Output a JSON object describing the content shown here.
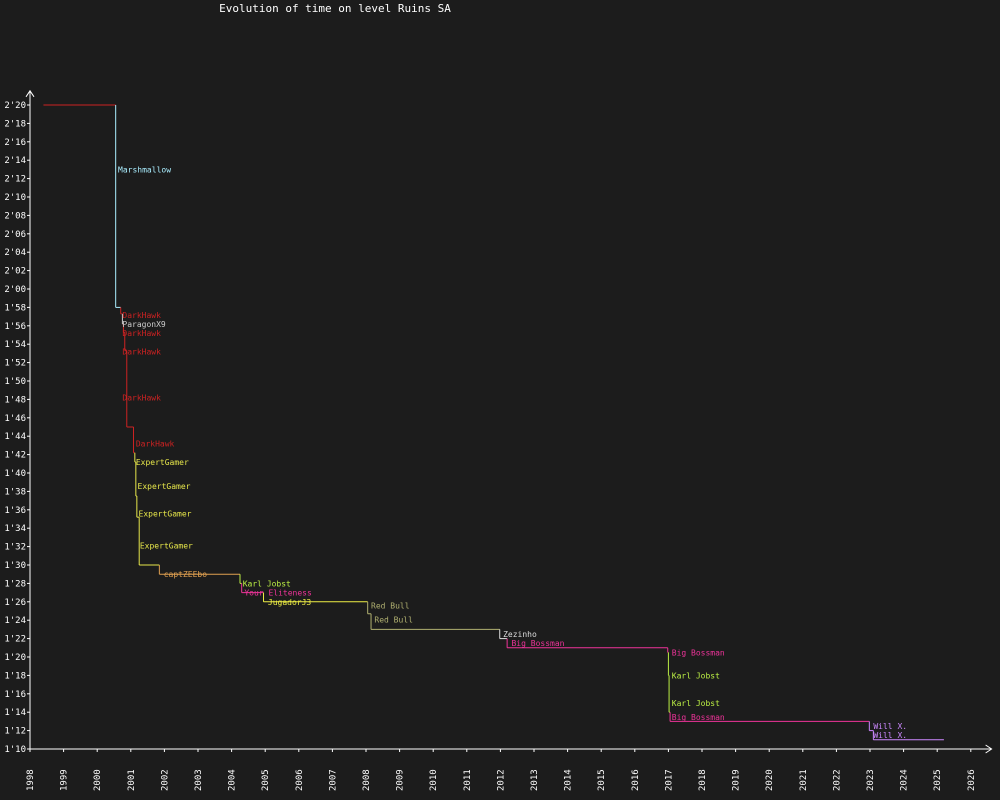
{
  "chart_data": {
    "type": "line",
    "title": "Evolution of time on level Ruins SA",
    "xlabel": "",
    "ylabel": "",
    "x_range": [
      1998,
      2026.5
    ],
    "y_range": [
      70,
      141
    ],
    "x_ticks": [
      "1998",
      "1999",
      "2000",
      "2001",
      "2002",
      "2003",
      "2004",
      "2005",
      "2006",
      "2007",
      "2008",
      "2009",
      "2010",
      "2011",
      "2012",
      "2013",
      "2014",
      "2015",
      "2016",
      "2017",
      "2018",
      "2019",
      "2020",
      "2021",
      "2022",
      "2023",
      "2024",
      "2025",
      "2026"
    ],
    "y_ticks": [
      {
        "value": 70,
        "label": "1'10"
      },
      {
        "value": 72,
        "label": "1'12"
      },
      {
        "value": 74,
        "label": "1'14"
      },
      {
        "value": 76,
        "label": "1'16"
      },
      {
        "value": 78,
        "label": "1'18"
      },
      {
        "value": 80,
        "label": "1'20"
      },
      {
        "value": 82,
        "label": "1'22"
      },
      {
        "value": 84,
        "label": "1'24"
      },
      {
        "value": 86,
        "label": "1'26"
      },
      {
        "value": 88,
        "label": "1'28"
      },
      {
        "value": 90,
        "label": "1'30"
      },
      {
        "value": 92,
        "label": "1'32"
      },
      {
        "value": 94,
        "label": "1'34"
      },
      {
        "value": 96,
        "label": "1'36"
      },
      {
        "value": 98,
        "label": "1'38"
      },
      {
        "value": 100,
        "label": "1'40"
      },
      {
        "value": 102,
        "label": "1'42"
      },
      {
        "value": 104,
        "label": "1'44"
      },
      {
        "value": 106,
        "label": "1'46"
      },
      {
        "value": 108,
        "label": "1'48"
      },
      {
        "value": 110,
        "label": "1'50"
      },
      {
        "value": 112,
        "label": "1'52"
      },
      {
        "value": 114,
        "label": "1'54"
      },
      {
        "value": 116,
        "label": "1'56"
      },
      {
        "value": 118,
        "label": "1'58"
      },
      {
        "value": 120,
        "label": "2'00"
      },
      {
        "value": 122,
        "label": "2'02"
      },
      {
        "value": 124,
        "label": "2'04"
      },
      {
        "value": 126,
        "label": "2'06"
      },
      {
        "value": 128,
        "label": "2'08"
      },
      {
        "value": 130,
        "label": "2'10"
      },
      {
        "value": 132,
        "label": "2'12"
      },
      {
        "value": 134,
        "label": "2'14"
      },
      {
        "value": 136,
        "label": "2'16"
      },
      {
        "value": 138,
        "label": "2'18"
      },
      {
        "value": 140,
        "label": "2'20"
      }
    ],
    "grid": false,
    "records": [
      {
        "holder": "",
        "start": 1998.4,
        "end": 2000.55,
        "time": 140,
        "color": "#cc2222"
      },
      {
        "holder": "Marshmallow",
        "start": 2000.55,
        "end": 2000.7,
        "time": 118,
        "color": "#aaeeff"
      },
      {
        "holder": "DarkHawk",
        "start": 2000.7,
        "end": 2000.75,
        "time": 117.3,
        "color": "#cc2222"
      },
      {
        "holder": "ParagonX9",
        "start": 2000.75,
        "end": 2000.78,
        "time": 116.2,
        "color": "#cccccc"
      },
      {
        "holder": "DarkHawk",
        "start": 2000.78,
        "end": 2000.82,
        "time": 115.3,
        "color": "#cc2222"
      },
      {
        "holder": "DarkHawk",
        "start": 2000.82,
        "end": 2000.88,
        "time": 113.3,
        "color": "#cc2222"
      },
      {
        "holder": "DarkHawk",
        "start": 2000.88,
        "end": 2001.08,
        "time": 105,
        "color": "#cc2222"
      },
      {
        "holder": "DarkHawk",
        "start": 2001.08,
        "end": 2001.12,
        "time": 102.2,
        "color": "#cc2222"
      },
      {
        "holder": "ExpertGamer",
        "start": 2001.12,
        "end": 2001.15,
        "time": 101.2,
        "color": "#e6e64a"
      },
      {
        "holder": "ExpertGamer",
        "start": 2001.15,
        "end": 2001.18,
        "time": 97.5,
        "color": "#e6e64a"
      },
      {
        "holder": "ExpertGamer",
        "start": 2001.18,
        "end": 2001.25,
        "time": 95.2,
        "color": "#e6e64a"
      },
      {
        "holder": "ExpertGamer",
        "start": 2001.25,
        "end": 2001.85,
        "time": 90,
        "color": "#e6e64a"
      },
      {
        "holder": "captZEEbo",
        "start": 2001.85,
        "end": 2004.25,
        "time": 89,
        "color": "#e0a050"
      },
      {
        "holder": "Karl Jobst",
        "start": 2004.25,
        "end": 2004.3,
        "time": 88,
        "color": "#bbee44"
      },
      {
        "holder": "Your Eliteness",
        "start": 2004.3,
        "end": 2004.95,
        "time": 87,
        "color": "#ee3399"
      },
      {
        "holder": "JugadorJ3",
        "start": 2004.95,
        "end": 2008.05,
        "time": 86,
        "color": "#eeee44"
      },
      {
        "holder": "Red Bull",
        "start": 2008.05,
        "end": 2008.15,
        "time": 84.7,
        "color": "#b0b070"
      },
      {
        "holder": "Red Bull",
        "start": 2008.15,
        "end": 2011.98,
        "time": 83,
        "color": "#b0b070"
      },
      {
        "holder": "Zezinho",
        "start": 2011.98,
        "end": 2012.2,
        "time": 82,
        "color": "#dddddd"
      },
      {
        "holder": "Big Bossman",
        "start": 2012.2,
        "end": 2016.98,
        "time": 81,
        "color": "#ee3399"
      },
      {
        "holder": "Big Bossman",
        "start": 2016.98,
        "end": 2017.0,
        "time": 80.5,
        "color": "#ee3399"
      },
      {
        "holder": "Karl Jobst",
        "start": 2017.0,
        "end": 2017.02,
        "time": 78,
        "color": "#bbee44"
      },
      {
        "holder": "Karl Jobst",
        "start": 2017.02,
        "end": 2017.05,
        "time": 74,
        "color": "#bbee44"
      },
      {
        "holder": "Big Bossman",
        "start": 2017.05,
        "end": 2022.98,
        "time": 73,
        "color": "#ee3399"
      },
      {
        "holder": "Will X.",
        "start": 2022.98,
        "end": 2023.1,
        "time": 72,
        "color": "#cc88ff"
      },
      {
        "holder": "Will X.",
        "start": 2023.1,
        "end": 2025.2,
        "time": 71,
        "color": "#cc88ff"
      }
    ],
    "labels": [
      {
        "text": "Marshmallow",
        "x": 2000.62,
        "y": 133,
        "color": "#aaeeff"
      },
      {
        "text": "DarkHawk",
        "x": 2000.75,
        "y": 117.2,
        "color": "#cc2222"
      },
      {
        "text": "ParagonX9",
        "x": 2000.75,
        "y": 116.2,
        "color": "#cccccc"
      },
      {
        "text": "DarkHawk",
        "x": 2000.75,
        "y": 115.2,
        "color": "#cc2222"
      },
      {
        "text": "DarkHawk",
        "x": 2000.75,
        "y": 113.2,
        "color": "#cc2222"
      },
      {
        "text": "DarkHawk",
        "x": 2000.75,
        "y": 108.2,
        "color": "#cc2222"
      },
      {
        "text": "DarkHawk",
        "x": 2001.15,
        "y": 103.2,
        "color": "#cc2222"
      },
      {
        "text": "ExpertGamer",
        "x": 2001.15,
        "y": 101.2,
        "color": "#e6e64a"
      },
      {
        "text": "ExpertGamer",
        "x": 2001.2,
        "y": 98.6,
        "color": "#e6e64a"
      },
      {
        "text": "ExpertGamer",
        "x": 2001.23,
        "y": 95.6,
        "color": "#e6e64a"
      },
      {
        "text": "ExpertGamer",
        "x": 2001.27,
        "y": 92.1,
        "color": "#e6e64a"
      },
      {
        "text": "captZEEbo",
        "x": 2001.98,
        "y": 89,
        "color": "#e0a050"
      },
      {
        "text": "Karl Jobst",
        "x": 2004.33,
        "y": 88,
        "color": "#bbee44"
      },
      {
        "text": "Your Eliteness",
        "x": 2004.38,
        "y": 87,
        "color": "#ee3399"
      },
      {
        "text": "JugadorJ3",
        "x": 2005.08,
        "y": 86,
        "color": "#eeee44"
      },
      {
        "text": "Red Bull",
        "x": 2008.15,
        "y": 85.6,
        "color": "#b0b070"
      },
      {
        "text": "Red Bull",
        "x": 2008.25,
        "y": 84.1,
        "color": "#b0b070"
      },
      {
        "text": "Zezinho",
        "x": 2012.08,
        "y": 82.5,
        "color": "#dddddd"
      },
      {
        "text": "Big Bossman",
        "x": 2012.33,
        "y": 81.5,
        "color": "#ee3399"
      },
      {
        "text": "Big Bossman",
        "x": 2017.1,
        "y": 80.5,
        "color": "#ee3399"
      },
      {
        "text": "Karl Jobst",
        "x": 2017.1,
        "y": 78,
        "color": "#bbee44"
      },
      {
        "text": "Karl Jobst",
        "x": 2017.1,
        "y": 75,
        "color": "#bbee44"
      },
      {
        "text": "Big Bossman",
        "x": 2017.1,
        "y": 73.5,
        "color": "#ee3399"
      },
      {
        "text": "Will X.",
        "x": 2023.1,
        "y": 72.5,
        "color": "#cc88ff"
      },
      {
        "text": "Will X.",
        "x": 2023.1,
        "y": 71.5,
        "color": "#cc88ff"
      }
    ]
  }
}
